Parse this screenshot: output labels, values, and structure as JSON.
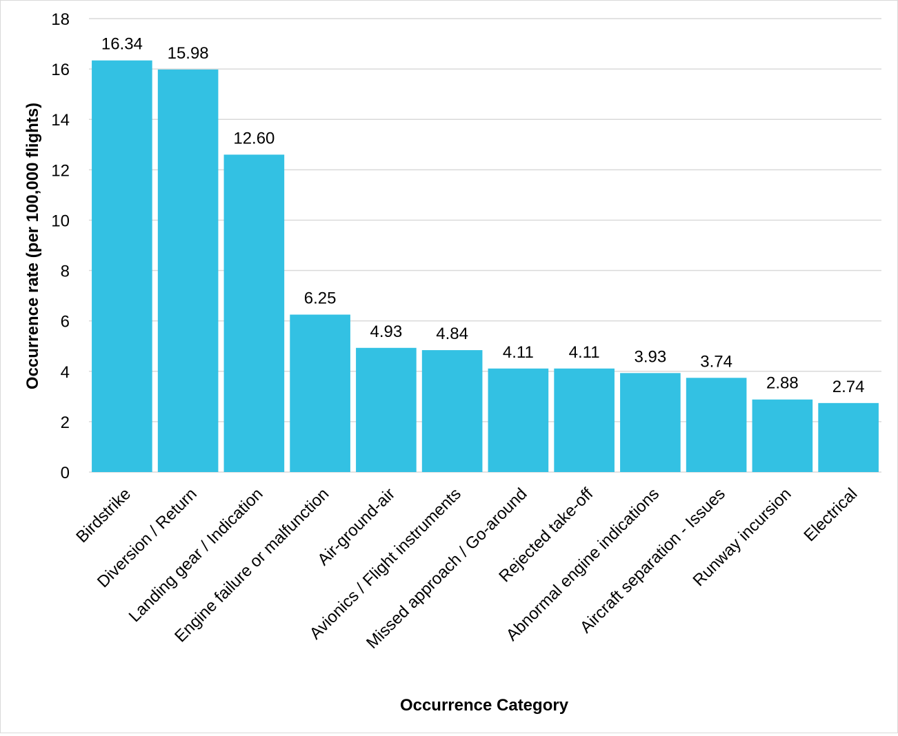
{
  "chart_data": {
    "type": "bar",
    "categories": [
      "Birdstrike",
      "Diversion / Return",
      "Landing gear / Indication",
      "Engine failure or malfunction",
      "Air-ground-air",
      "Avionics / Flight instruments",
      "Missed approach / Go-around",
      "Rejected take-off",
      "Abnormal engine indications",
      "Aircraft separation - Issues",
      "Runway incursion",
      "Electrical"
    ],
    "values": [
      16.34,
      15.98,
      12.6,
      6.25,
      4.93,
      4.84,
      4.11,
      4.11,
      3.93,
      3.74,
      2.88,
      2.74
    ],
    "data_labels": [
      "16.34",
      "15.98",
      "12.60",
      "6.25",
      "4.93",
      "4.84",
      "4.11",
      "4.11",
      "3.93",
      "3.74",
      "2.88",
      "2.74"
    ],
    "title": "",
    "xlabel": "Occurrence Category",
    "ylabel": "Occurrence rate (per 100,000 flights)",
    "ylim": [
      0,
      18
    ],
    "yticks": [
      0,
      2,
      4,
      6,
      8,
      10,
      12,
      14,
      16,
      18
    ],
    "grid": true,
    "legend": "none",
    "bar_color": "#33c1e3"
  }
}
